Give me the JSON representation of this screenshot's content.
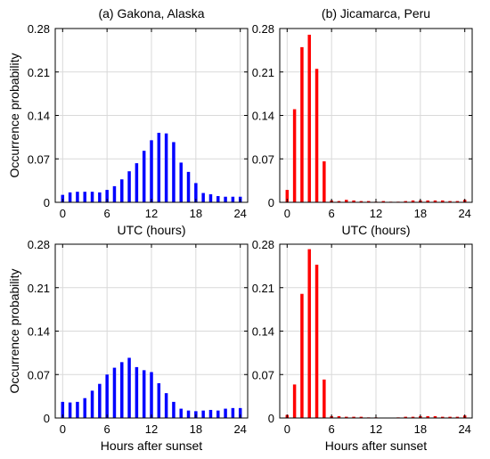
{
  "chart_data": [
    {
      "type": "bar",
      "title": "(a) Gakona, Alaska",
      "xlabel": "UTC (hours)",
      "ylabel": "Occurrence probability",
      "color": "#0000ff",
      "xlim": [
        -1,
        25
      ],
      "ylim": [
        0,
        0.28
      ],
      "xticks": [
        "0",
        "6",
        "12",
        "18",
        "24"
      ],
      "yticks": [
        "0",
        "0.07",
        "0.14",
        "0.21",
        "0.28"
      ],
      "grid": true,
      "x": [
        0,
        1,
        2,
        3,
        4,
        5,
        6,
        7,
        8,
        9,
        10,
        11,
        12,
        13,
        14,
        15,
        16,
        17,
        18,
        19,
        20,
        21,
        22,
        23,
        24
      ],
      "values": [
        0.012,
        0.016,
        0.017,
        0.017,
        0.017,
        0.016,
        0.02,
        0.026,
        0.037,
        0.05,
        0.063,
        0.083,
        0.1,
        0.112,
        0.111,
        0.097,
        0.064,
        0.049,
        0.031,
        0.015,
        0.013,
        0.01,
        0.009,
        0.009,
        0.009
      ]
    },
    {
      "type": "bar",
      "title": "(b) Jicamarca, Peru",
      "xlabel": "UTC (hours)",
      "ylabel": "",
      "color": "#ff0000",
      "xlim": [
        -1,
        25
      ],
      "ylim": [
        0,
        0.28
      ],
      "xticks": [
        "0",
        "6",
        "12",
        "18",
        "24"
      ],
      "yticks": [
        "0",
        "0.07",
        "0.14",
        "0.21",
        "0.28"
      ],
      "grid": true,
      "x": [
        0,
        1,
        2,
        3,
        4,
        5,
        6,
        7,
        8,
        9,
        10,
        11,
        12,
        13,
        14,
        15,
        16,
        17,
        18,
        19,
        20,
        21,
        22,
        23,
        24
      ],
      "values": [
        0.02,
        0.15,
        0.25,
        0.27,
        0.215,
        0.066,
        0.003,
        0.002,
        0.004,
        0.003,
        0.002,
        0.002,
        0.001,
        0.002,
        0.001,
        0.001,
        0.002,
        0.003,
        0.003,
        0.003,
        0.003,
        0.003,
        0.002,
        0.002,
        0.004
      ]
    },
    {
      "type": "bar",
      "title": "",
      "xlabel": "Hours after sunset",
      "ylabel": "Occurrence probability",
      "color": "#0000ff",
      "xlim": [
        -1,
        25
      ],
      "ylim": [
        0,
        0.28
      ],
      "xticks": [
        "0",
        "6",
        "12",
        "18",
        "24"
      ],
      "yticks": [
        "0",
        "0.07",
        "0.14",
        "0.21",
        "0.28"
      ],
      "grid": true,
      "x": [
        0,
        1,
        2,
        3,
        4,
        5,
        6,
        7,
        8,
        9,
        10,
        11,
        12,
        13,
        14,
        15,
        16,
        17,
        18,
        19,
        20,
        21,
        22,
        23,
        24
      ],
      "values": [
        0.026,
        0.025,
        0.026,
        0.032,
        0.044,
        0.055,
        0.07,
        0.081,
        0.09,
        0.097,
        0.082,
        0.077,
        0.074,
        0.056,
        0.04,
        0.026,
        0.015,
        0.012,
        0.011,
        0.012,
        0.013,
        0.012,
        0.015,
        0.016,
        0.016
      ]
    },
    {
      "type": "bar",
      "title": "",
      "xlabel": "Hours after sunset",
      "ylabel": "",
      "color": "#ff0000",
      "xlim": [
        -1,
        25
      ],
      "ylim": [
        0,
        0.28
      ],
      "xticks": [
        "0",
        "6",
        "12",
        "18",
        "24"
      ],
      "yticks": [
        "0",
        "0.07",
        "0.14",
        "0.21",
        "0.28"
      ],
      "grid": true,
      "x": [
        0,
        1,
        2,
        3,
        4,
        5,
        6,
        7,
        8,
        9,
        10,
        11,
        12,
        13,
        14,
        15,
        16,
        17,
        18,
        19,
        20,
        21,
        22,
        23,
        24
      ],
      "values": [
        0.005,
        0.054,
        0.2,
        0.272,
        0.247,
        0.062,
        0.003,
        0.003,
        0.002,
        0.002,
        0.002,
        0.001,
        0.001,
        0.0,
        0.0,
        0.001,
        0.002,
        0.002,
        0.003,
        0.003,
        0.003,
        0.002,
        0.002,
        0.002,
        0.004
      ]
    }
  ]
}
